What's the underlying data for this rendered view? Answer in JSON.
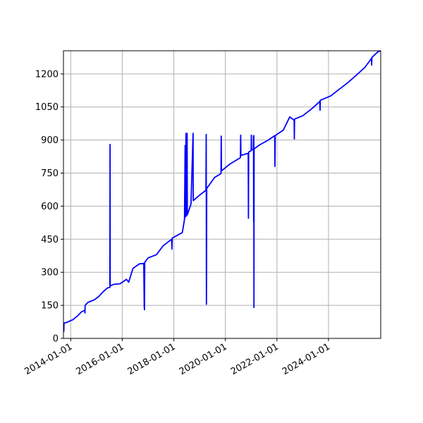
{
  "chart_data": {
    "type": "line",
    "title": "",
    "xlabel": "",
    "ylabel": "",
    "x_axis_type": "date",
    "xlim": [
      "2013-09-20",
      "2026-01-10"
    ],
    "ylim": [
      0,
      1305
    ],
    "x_ticks": [
      "2014-01-01",
      "2016-01-01",
      "2018-01-01",
      "2020-01-01",
      "2022-01-01",
      "2024-01-01"
    ],
    "y_ticks": [
      0,
      150,
      300,
      450,
      600,
      750,
      900,
      1050,
      1200
    ],
    "grid": true,
    "legend": "none",
    "series": [
      {
        "color": "#0000ff",
        "points": [
          [
            "2013-09-25",
            30
          ],
          [
            "2013-09-28",
            70
          ],
          [
            "2013-11-01",
            72
          ],
          [
            "2014-02-01",
            85
          ],
          [
            "2014-04-01",
            100
          ],
          [
            "2014-06-01",
            120
          ],
          [
            "2014-07-20",
            128
          ],
          [
            "2014-07-22",
            115
          ],
          [
            "2014-07-24",
            150
          ],
          [
            "2014-09-01",
            163
          ],
          [
            "2014-12-01",
            175
          ],
          [
            "2015-02-01",
            190
          ],
          [
            "2015-04-01",
            210
          ],
          [
            "2015-06-01",
            228
          ],
          [
            "2015-07-10",
            232
          ],
          [
            "2015-07-12",
            880
          ],
          [
            "2015-07-14",
            238
          ],
          [
            "2015-09-01",
            245
          ],
          [
            "2015-12-01",
            248
          ],
          [
            "2016-03-01",
            268
          ],
          [
            "2016-04-01",
            255
          ],
          [
            "2016-06-01",
            318
          ],
          [
            "2016-09-01",
            338
          ],
          [
            "2016-11-01",
            340
          ],
          [
            "2016-11-08",
            145
          ],
          [
            "2016-11-11",
            130
          ],
          [
            "2016-11-15",
            345
          ],
          [
            "2017-01-01",
            365
          ],
          [
            "2017-05-01",
            380
          ],
          [
            "2017-08-01",
            420
          ],
          [
            "2017-12-01",
            450
          ],
          [
            "2017-12-05",
            405
          ],
          [
            "2017-12-09",
            455
          ],
          [
            "2018-05-01",
            480
          ],
          [
            "2018-06-01",
            540
          ],
          [
            "2018-06-10",
            875
          ],
          [
            "2018-06-12",
            550
          ],
          [
            "2018-06-22",
            930
          ],
          [
            "2018-06-25",
            555
          ],
          [
            "2018-07-08",
            930
          ],
          [
            "2018-07-11",
            560
          ],
          [
            "2018-09-01",
            610
          ],
          [
            "2018-10-01",
            930
          ],
          [
            "2018-10-03",
            625
          ],
          [
            "2019-01-01",
            650
          ],
          [
            "2019-04-01",
            672
          ],
          [
            "2019-04-05",
            925
          ],
          [
            "2019-04-08",
            155
          ],
          [
            "2019-04-12",
            680
          ],
          [
            "2019-08-01",
            730
          ],
          [
            "2019-11-01",
            748
          ],
          [
            "2019-11-04",
            918
          ],
          [
            "2019-11-07",
            760
          ],
          [
            "2020-03-01",
            790
          ],
          [
            "2020-08-01",
            820
          ],
          [
            "2020-08-05",
            922
          ],
          [
            "2020-08-08",
            830
          ],
          [
            "2020-11-20",
            840
          ],
          [
            "2020-11-23",
            545
          ],
          [
            "2020-11-26",
            845
          ],
          [
            "2021-01-01",
            852
          ],
          [
            "2021-01-03",
            922
          ],
          [
            "2021-01-06",
            855
          ],
          [
            "2021-02-01",
            858
          ],
          [
            "2021-02-03",
            920
          ],
          [
            "2021-02-05",
            530
          ],
          [
            "2021-02-07",
            920
          ],
          [
            "2021-02-09",
            140
          ],
          [
            "2021-02-11",
            860
          ],
          [
            "2021-05-01",
            878
          ],
          [
            "2021-09-01",
            900
          ],
          [
            "2021-12-01",
            920
          ],
          [
            "2021-12-04",
            780
          ],
          [
            "2021-12-07",
            920
          ],
          [
            "2022-04-01",
            945
          ],
          [
            "2022-07-01",
            1005
          ],
          [
            "2022-09-01",
            990
          ],
          [
            "2022-09-04",
            905
          ],
          [
            "2022-09-07",
            995
          ],
          [
            "2023-01-01",
            1010
          ],
          [
            "2023-05-01",
            1040
          ],
          [
            "2023-09-01",
            1075
          ],
          [
            "2023-09-04",
            1035
          ],
          [
            "2023-09-07",
            1080
          ],
          [
            "2024-02-01",
            1100
          ],
          [
            "2024-06-01",
            1130
          ],
          [
            "2024-10-01",
            1160
          ],
          [
            "2025-02-01",
            1195
          ],
          [
            "2025-06-01",
            1230
          ],
          [
            "2025-09-01",
            1270
          ],
          [
            "2025-09-04",
            1240
          ],
          [
            "2025-09-07",
            1275
          ],
          [
            "2025-12-01",
            1300
          ],
          [
            "2026-01-10",
            1305
          ]
        ]
      }
    ]
  }
}
